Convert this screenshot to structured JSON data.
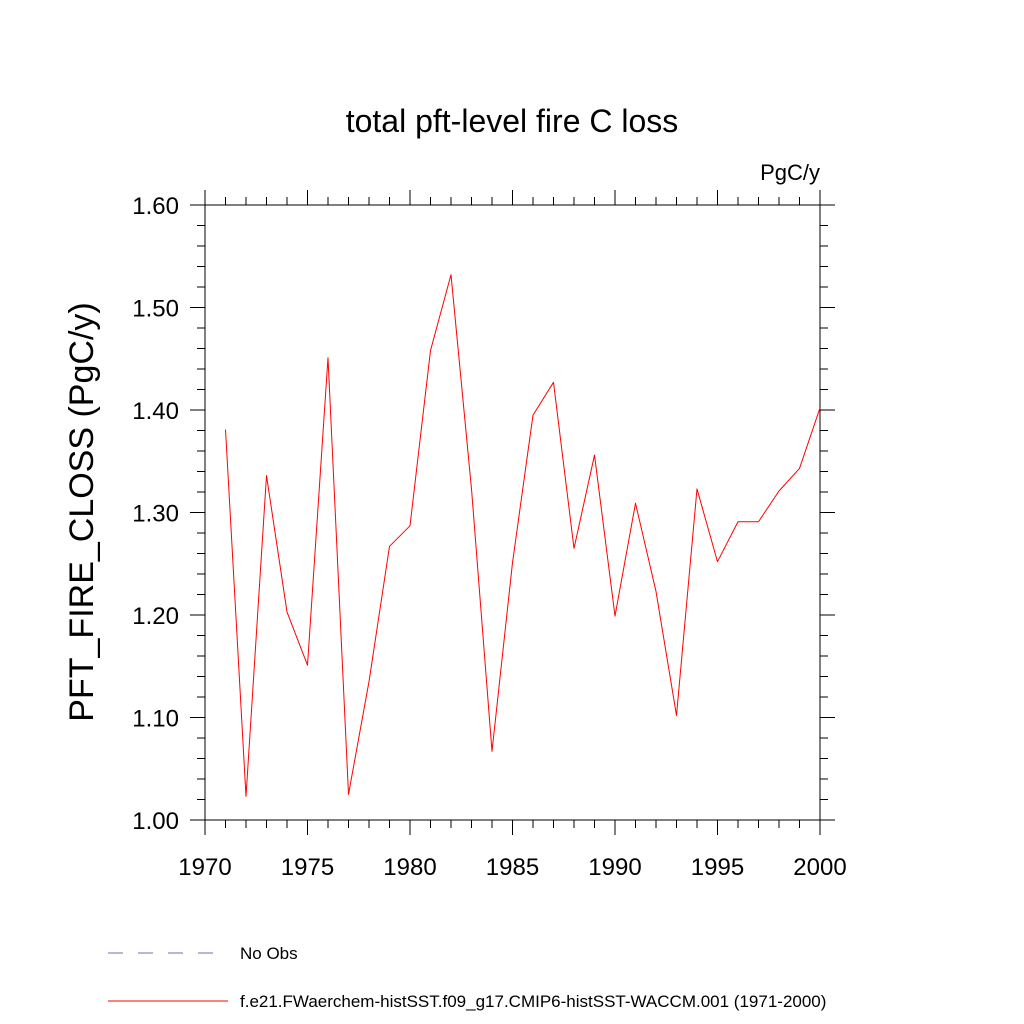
{
  "chart_data": {
    "type": "line",
    "title": "total pft-level fire C loss",
    "units_label": "PgC/y",
    "ylabel": "PFT_FIRE_CLOSS  (PgC/y)",
    "xlabel": "",
    "xlim": [
      1970,
      2000
    ],
    "ylim": [
      1.0,
      1.6
    ],
    "x_ticks": [
      1970,
      1975,
      1980,
      1985,
      1990,
      1995,
      2000
    ],
    "x_tick_labels": [
      "1970",
      "1975",
      "1980",
      "1985",
      "1990",
      "1995",
      "2000"
    ],
    "y_ticks": [
      1.0,
      1.1,
      1.2,
      1.3,
      1.4,
      1.5,
      1.6
    ],
    "y_tick_labels": [
      "1.00",
      "1.10",
      "1.20",
      "1.30",
      "1.40",
      "1.50",
      "1.60"
    ],
    "grid": false,
    "legend_position": "bottom",
    "series": [
      {
        "name": "f.e21.FWaerchem-histSST.f09_g17.CMIP6-histSST-WACCM.001 (1971-2000)",
        "color": "#ff0000",
        "style": "solid",
        "x": [
          1971,
          1972,
          1973,
          1974,
          1975,
          1976,
          1977,
          1978,
          1979,
          1980,
          1981,
          1982,
          1983,
          1984,
          1985,
          1986,
          1987,
          1988,
          1989,
          1990,
          1991,
          1992,
          1993,
          1994,
          1995,
          1996,
          1997,
          1998,
          1999,
          2000
        ],
        "y": [
          1.381,
          1.023,
          1.336,
          1.203,
          1.151,
          1.451,
          1.025,
          1.135,
          1.267,
          1.287,
          1.458,
          1.532,
          1.323,
          1.067,
          1.251,
          1.395,
          1.427,
          1.265,
          1.356,
          1.199,
          1.309,
          1.223,
          1.102,
          1.323,
          1.252,
          1.291,
          1.291,
          1.321,
          1.343,
          1.402
        ]
      }
    ],
    "legend": [
      {
        "label": "No Obs",
        "color": "#7b68b0",
        "style": "dashed"
      },
      {
        "label": "f.e21.FWaerchem-histSST.f09_g17.CMIP6-histSST-WACCM.001 (1971-2000)",
        "color": "#ff0000",
        "style": "solid"
      }
    ]
  }
}
